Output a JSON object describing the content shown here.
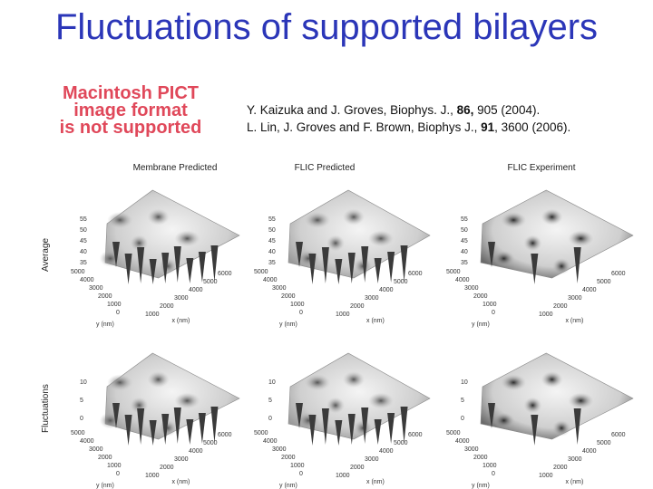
{
  "title": "Fluctuations of supported bilayers",
  "pict_message": [
    "Macintosh PICT",
    "image format",
    "is not supported"
  ],
  "references": [
    {
      "pre": "Y. Kaizuka and J. Groves, Biophys. J., ",
      "vol": "86,",
      "post": " 905 (2004)."
    },
    {
      "pre": "L. Lin, J. Groves and F. Brown, Biophys J., ",
      "vol": "91",
      "post": ", 3600 (2006)."
    }
  ],
  "figure": {
    "columns": [
      "Membrane Predicted",
      "FLIC Predicted",
      "FLIC Experiment"
    ],
    "rows": [
      "Average",
      "Fluctuations"
    ],
    "top_ticks": [
      "55",
      "50",
      "45",
      "40",
      "35"
    ],
    "bottom_ticks": [
      "10",
      "5",
      "0"
    ],
    "y_ticks": [
      "5000",
      "4000",
      "3000",
      "2000",
      "1000",
      "0"
    ],
    "x_ticks": [
      "6000",
      "5000",
      "4000",
      "3000",
      "2000",
      "1000"
    ],
    "axis_x": "x (nm)",
    "axis_y": "y (nm)"
  }
}
